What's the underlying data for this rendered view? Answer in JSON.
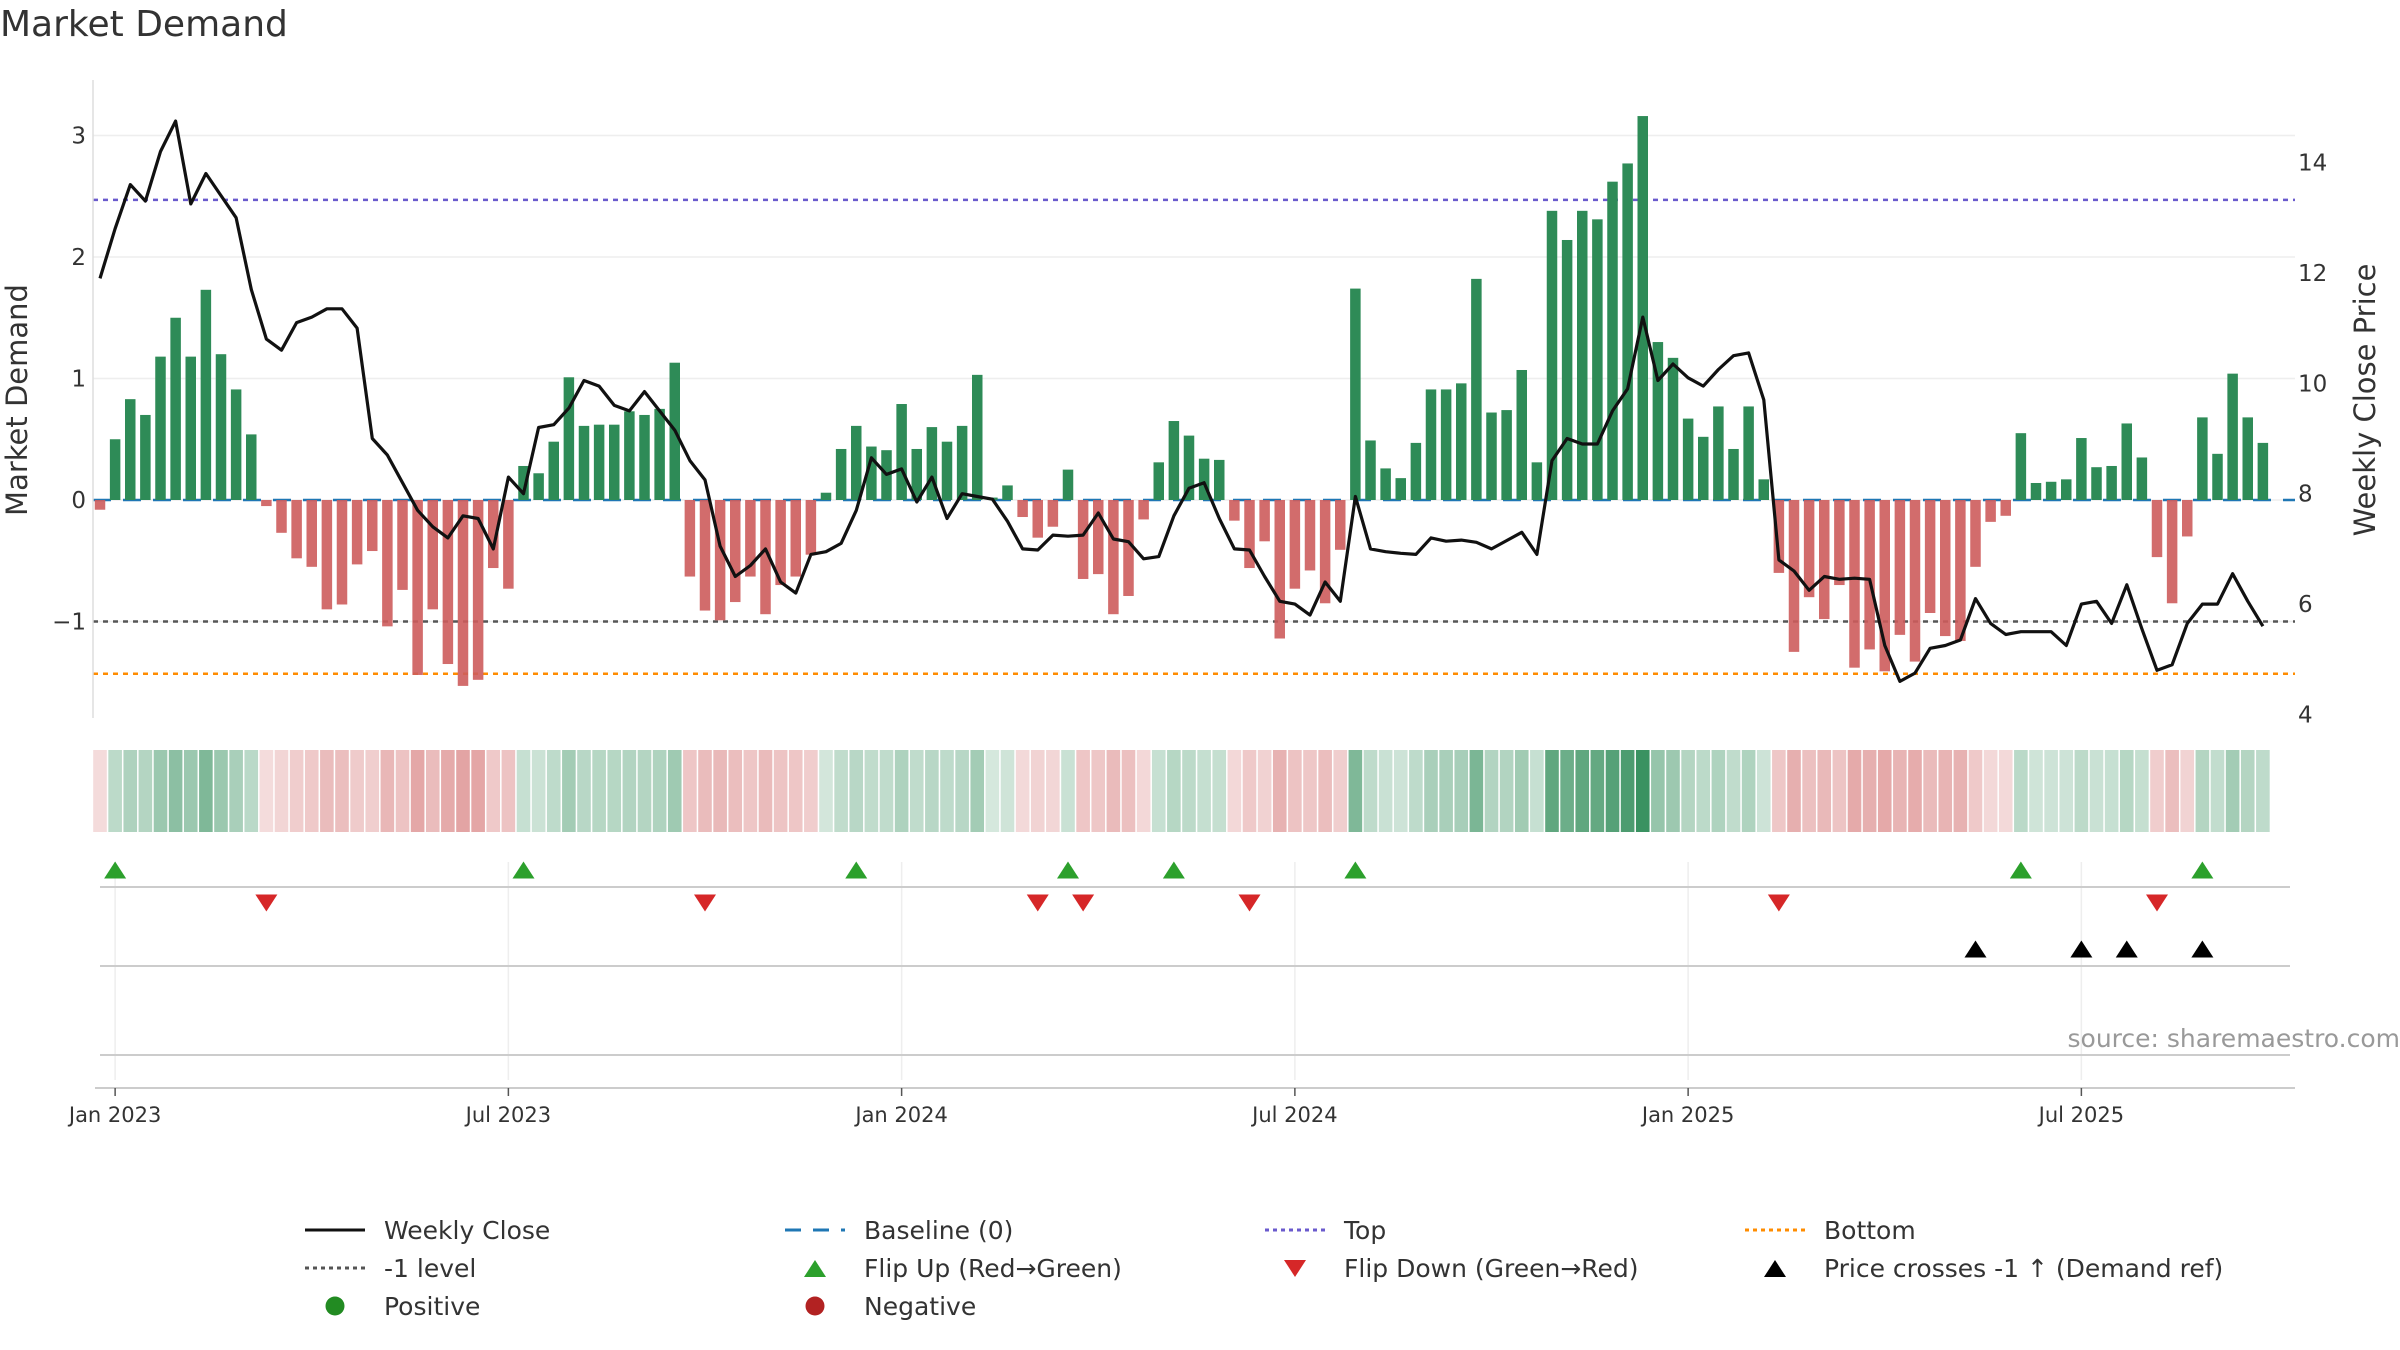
{
  "title": "Market Demand",
  "source": "source: sharemaestro.com",
  "colors": {
    "positive": "#2e8b57",
    "negative": "#cd5c5c",
    "price": "#111111",
    "baseline": "#1f77b4",
    "top": "#6a5acd",
    "bottom": "#ff8c00",
    "minus1": "#555555",
    "flip_up": "#2ca02c",
    "flip_down": "#d62728",
    "cross": "#000000"
  },
  "legend": [
    {
      "key": "weekly_close",
      "label": "Weekly Close",
      "shape": "line"
    },
    {
      "key": "baseline",
      "label": "Baseline (0)",
      "shape": "dash"
    },
    {
      "key": "top",
      "label": "Top",
      "shape": "dot-line"
    },
    {
      "key": "bottom",
      "label": "Bottom",
      "shape": "dot-line"
    },
    {
      "key": "minus1",
      "label": "-1 level",
      "shape": "dot-line"
    },
    {
      "key": "flip_up",
      "label": "Flip Up (Red→Green)",
      "shape": "tri-up"
    },
    {
      "key": "flip_down",
      "label": "Flip Down (Green→Red)",
      "shape": "tri-down"
    },
    {
      "key": "cross",
      "label": "Price crosses -1 ↑ (Demand ref)",
      "shape": "tri-up"
    },
    {
      "key": "positive_dot",
      "label": "Positive",
      "shape": "circle"
    },
    {
      "key": "negative_dot",
      "label": "Negative",
      "shape": "circle"
    }
  ],
  "chart_data": {
    "type": "bar",
    "title": "Market Demand",
    "ylabel": "Market Demand",
    "y2label": "Weekly Close Price",
    "ylim": [
      -1.8,
      3.5
    ],
    "y2lim": [
      4,
      15.3
    ],
    "yticks": [
      -1,
      0,
      1,
      2,
      3
    ],
    "y2ticks": [
      4,
      6,
      8,
      10,
      12,
      14
    ],
    "top_level": 2.47,
    "bottom_level": -1.43,
    "minus1_level": -1,
    "x_start": "2022-12-26",
    "x_interval": "weekly",
    "xticks": [
      {
        "label": "Jan 2023",
        "week": 1
      },
      {
        "label": "Jul 2023",
        "week": 27
      },
      {
        "label": "Jan 2024",
        "week": 53
      },
      {
        "label": "Jul 2024",
        "week": 79
      },
      {
        "label": "Jan 2025",
        "week": 105
      },
      {
        "label": "Jul 2025",
        "week": 131
      }
    ],
    "series": [
      {
        "name": "Market Demand",
        "values": [
          -0.08,
          0.5,
          0.83,
          0.7,
          1.18,
          1.5,
          1.18,
          1.73,
          1.2,
          0.91,
          0.54,
          -0.05,
          -0.27,
          -0.48,
          -0.55,
          -0.9,
          -0.86,
          -0.53,
          -0.42,
          -1.04,
          -0.74,
          -1.44,
          -0.9,
          -1.35,
          -1.53,
          -1.48,
          -0.56,
          -0.73,
          0.28,
          0.22,
          0.48,
          1.01,
          0.61,
          0.62,
          0.62,
          0.73,
          0.7,
          0.75,
          1.13,
          -0.63,
          -0.91,
          -0.99,
          -0.84,
          -0.63,
          -0.94,
          -0.7,
          -0.63,
          -0.45,
          0.06,
          0.42,
          0.61,
          0.44,
          0.41,
          0.79,
          0.42,
          0.6,
          0.48,
          0.61,
          1.03,
          0.02,
          0.12,
          -0.14,
          -0.31,
          -0.22,
          0.25,
          -0.65,
          -0.61,
          -0.94,
          -0.79,
          -0.16,
          0.31,
          0.65,
          0.53,
          0.34,
          0.33,
          -0.17,
          -0.56,
          -0.34,
          -1.14,
          -0.73,
          -0.58,
          -0.85,
          -0.41,
          1.74,
          0.49,
          0.26,
          0.18,
          0.47,
          0.91,
          0.91,
          0.96,
          1.82,
          0.72,
          0.74,
          1.07,
          0.31,
          2.38,
          2.14,
          2.38,
          2.31,
          2.62,
          2.77,
          3.16,
          1.3,
          1.17,
          0.67,
          0.52,
          0.77,
          0.42,
          0.77,
          0.17,
          -0.6,
          -1.25,
          -0.8,
          -0.98,
          -0.7,
          -1.38,
          -1.23,
          -1.41,
          -1.11,
          -1.33,
          -0.93,
          -1.12,
          -1.16,
          -0.55,
          -0.18,
          -0.13,
          0.55,
          0.14,
          0.15,
          0.17,
          0.51,
          0.27,
          0.28,
          0.63,
          0.35,
          -0.47,
          -0.85,
          -0.3,
          0.68,
          0.38,
          1.04,
          0.68,
          0.47
        ]
      },
      {
        "name": "Weekly Close",
        "values": [
          11.9,
          12.8,
          13.6,
          13.3,
          14.2,
          14.75,
          13.25,
          13.8,
          13.4,
          13.0,
          11.7,
          10.8,
          10.6,
          11.1,
          11.2,
          11.35,
          11.35,
          11.0,
          9.0,
          8.7,
          8.2,
          7.7,
          7.4,
          7.2,
          7.6,
          7.55,
          7.0,
          8.3,
          8.0,
          9.2,
          9.25,
          9.55,
          10.05,
          9.95,
          9.6,
          9.5,
          9.85,
          9.5,
          9.15,
          8.6,
          8.25,
          7.05,
          6.5,
          6.7,
          7.0,
          6.4,
          6.2,
          6.9,
          6.95,
          7.1,
          7.7,
          8.65,
          8.35,
          8.45,
          7.85,
          8.3,
          7.55,
          8.0,
          7.95,
          7.9,
          7.5,
          7.0,
          6.98,
          7.25,
          7.23,
          7.25,
          7.65,
          7.18,
          7.13,
          6.82,
          6.86,
          7.6,
          8.1,
          8.2,
          7.55,
          7.0,
          6.98,
          6.5,
          6.05,
          6.0,
          5.8,
          6.4,
          6.05,
          7.95,
          7.0,
          6.95,
          6.92,
          6.9,
          7.2,
          7.14,
          7.16,
          7.12,
          7.0,
          7.15,
          7.3,
          6.9,
          8.6,
          9.0,
          8.9,
          8.9,
          9.5,
          9.9,
          11.2,
          10.05,
          10.35,
          10.1,
          9.95,
          10.25,
          10.5,
          10.55,
          9.7,
          6.8,
          6.6,
          6.25,
          6.5,
          6.45,
          6.47,
          6.45,
          5.25,
          4.6,
          4.75,
          5.2,
          5.25,
          5.35,
          6.1,
          5.65,
          5.45,
          5.5,
          5.5,
          5.5,
          5.25,
          6.0,
          6.05,
          5.65,
          6.35,
          5.55,
          4.8,
          4.9,
          5.65,
          6.0,
          6.0,
          6.55,
          6.05,
          5.6
        ]
      }
    ],
    "flip_up_weeks": [
      1,
      28,
      50,
      64,
      71,
      83,
      127,
      139
    ],
    "flip_down_weeks": [
      11,
      40,
      62,
      65,
      76,
      111,
      136
    ],
    "price_cross_weeks": [
      124,
      131,
      134,
      139
    ]
  }
}
